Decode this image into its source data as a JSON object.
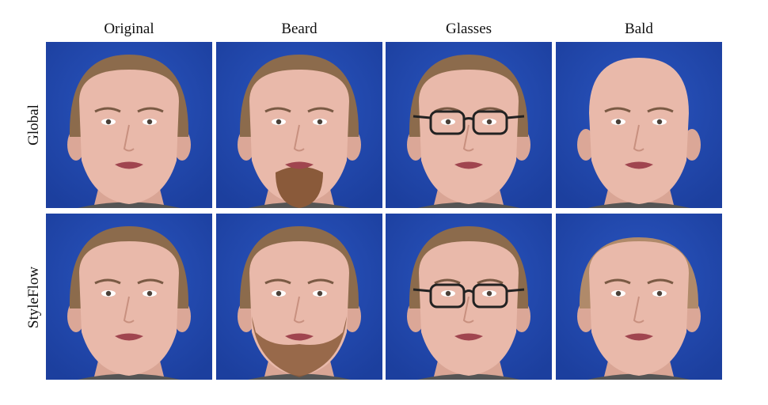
{
  "figure": {
    "columns": [
      "Original",
      "Beard",
      "Glasses",
      "Bald"
    ],
    "rows": [
      "Global",
      "StyleFlow"
    ]
  },
  "colors": {
    "background_blue": "#1c3f9e",
    "skin": "#e9b9aa",
    "hair": "#8c6b4c",
    "beard": "#8a5a3a"
  }
}
